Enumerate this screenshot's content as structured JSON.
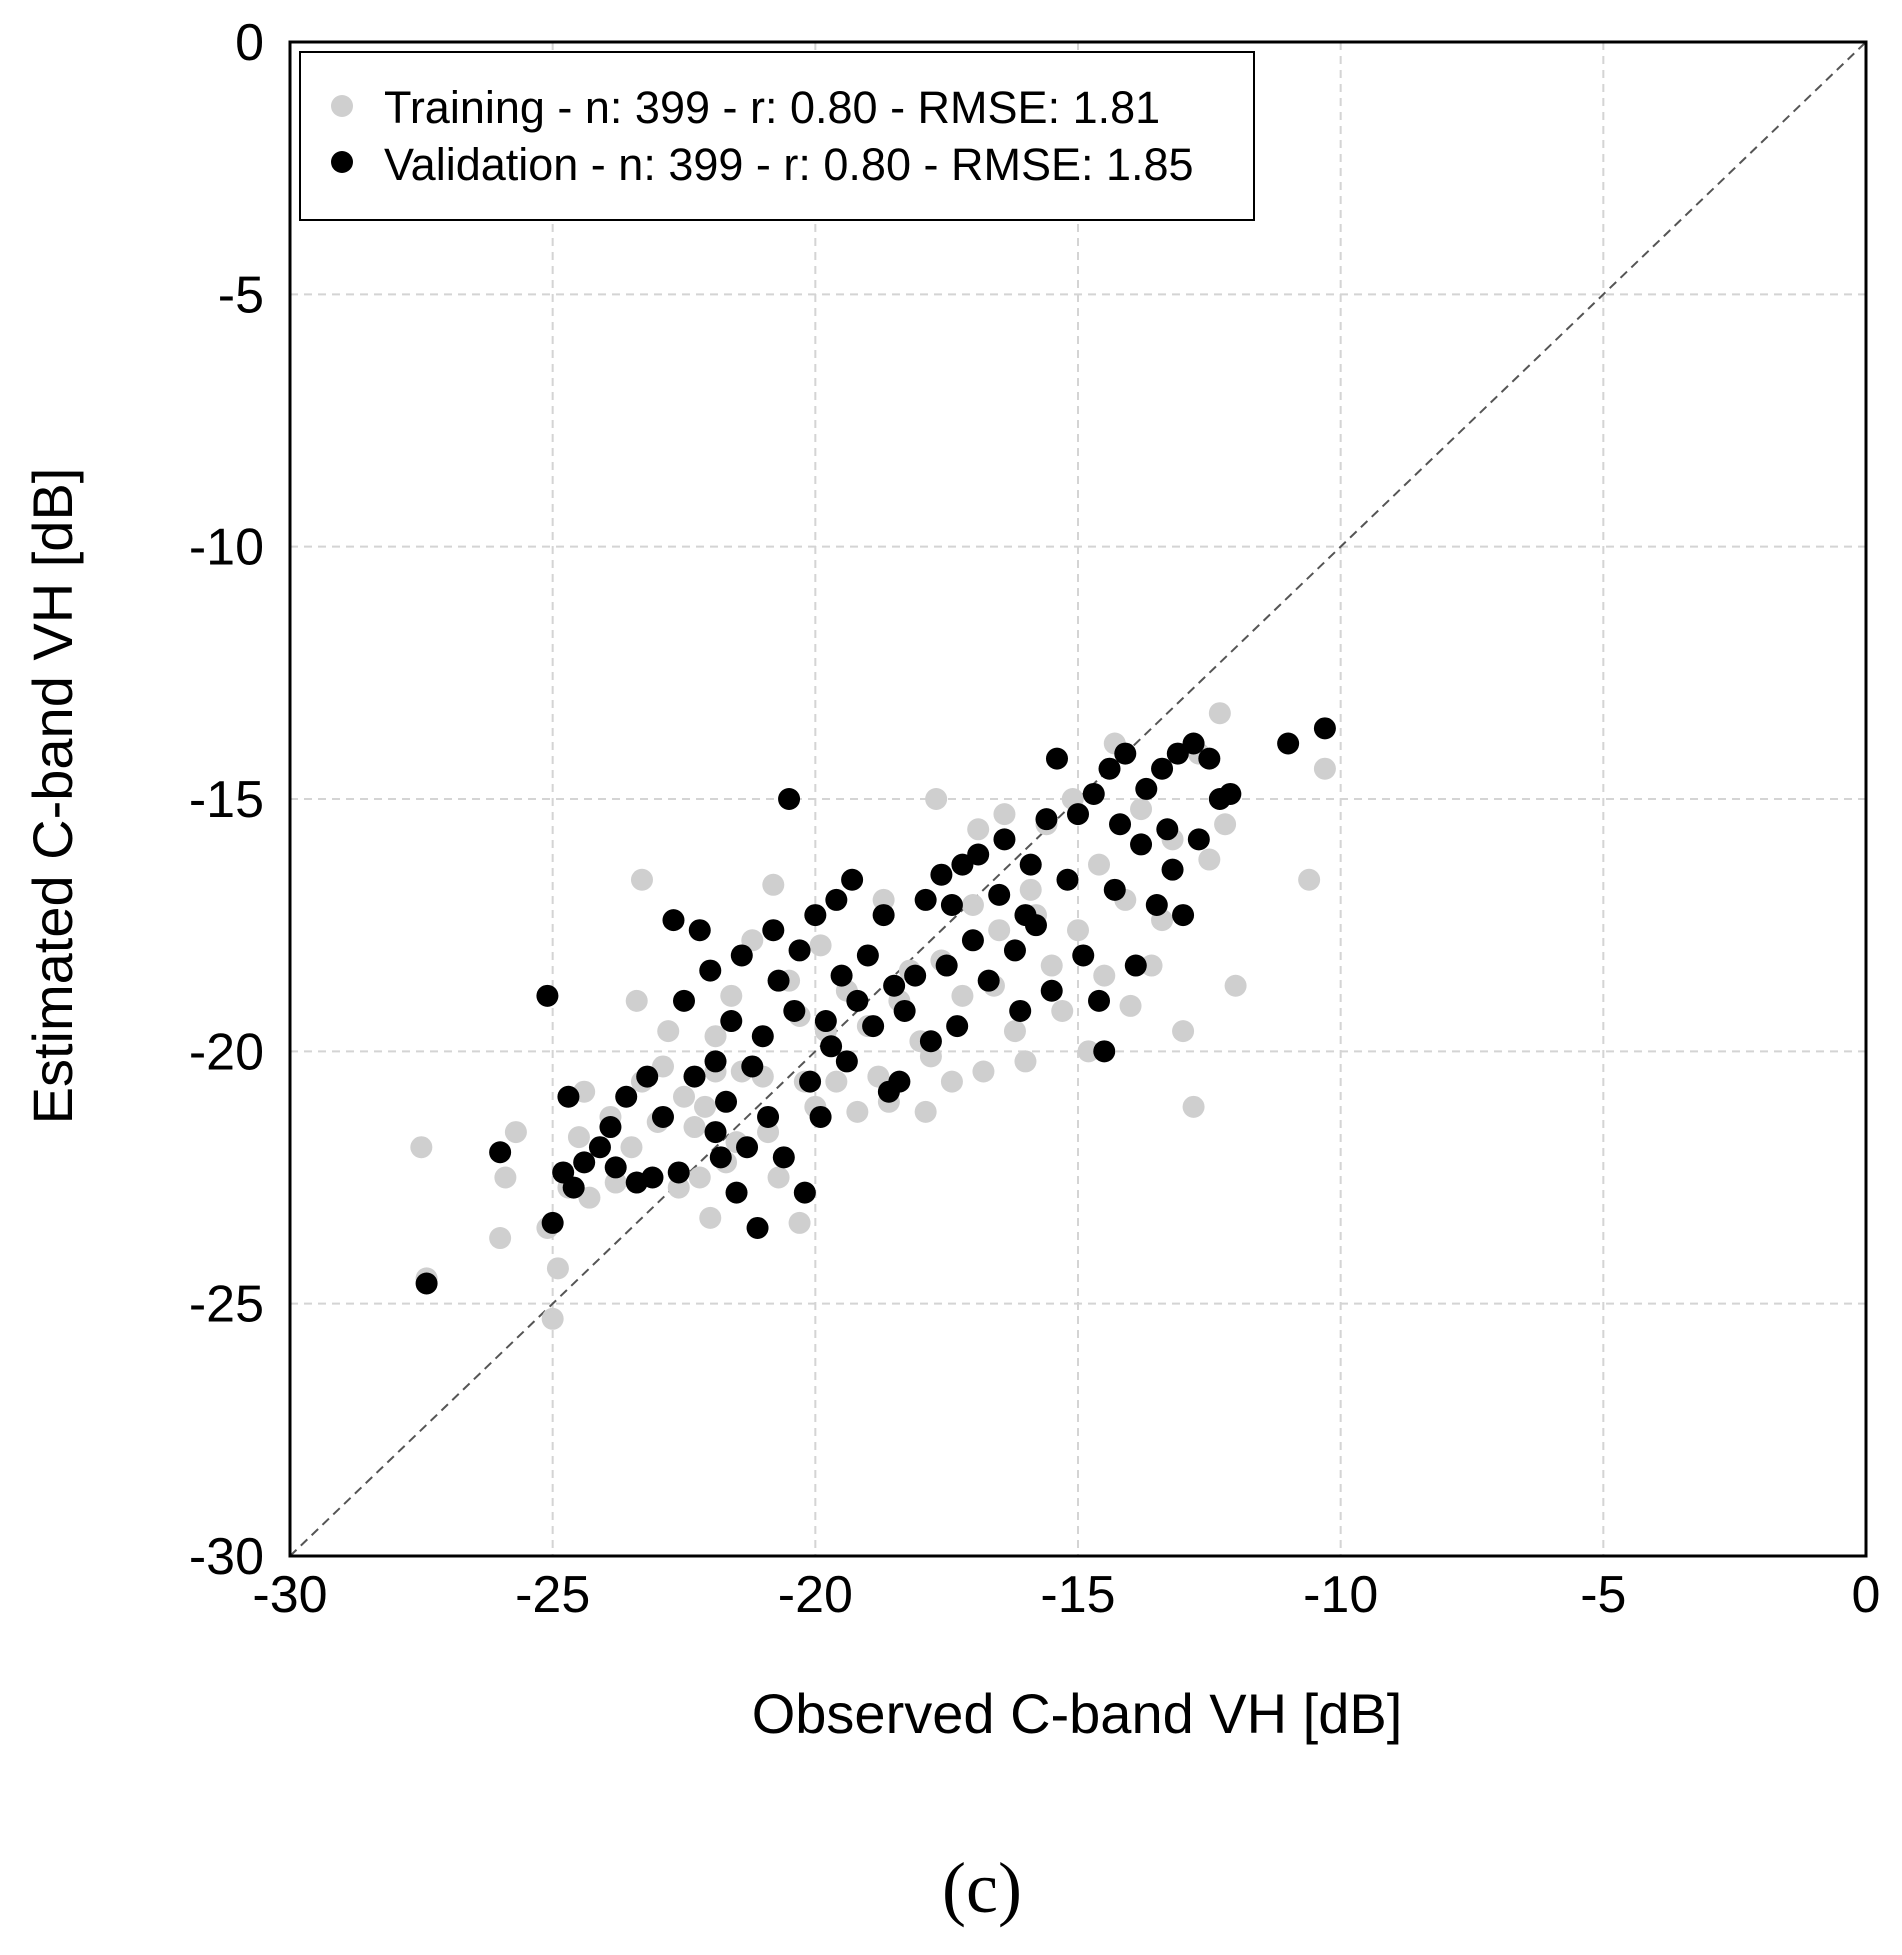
{
  "chart_data": {
    "type": "scatter",
    "xlabel": "Observed C-band VH [dB]",
    "ylabel": "Estimated C-band VH [dB]",
    "xlim": [
      -30,
      0
    ],
    "ylim": [
      -30,
      0
    ],
    "xticks": [
      "-30",
      "-25",
      "-20",
      "-15",
      "-10",
      "-5",
      "0"
    ],
    "yticks": [
      "0",
      "-5",
      "-10",
      "-15",
      "-20",
      "-25",
      "-30"
    ],
    "grid": true,
    "legend_position": "top-left",
    "reference_line": "1:1 dashed",
    "panel_label": "(c)",
    "series": [
      {
        "name": "Training - n: 399 - r: 0.80 - RMSE: 1.81",
        "color": "#cfcfcf",
        "points": [
          [
            -27.5,
            -21.9
          ],
          [
            -27.4,
            -24.5
          ],
          [
            -26.0,
            -23.7
          ],
          [
            -25.9,
            -22.5
          ],
          [
            -25.7,
            -21.6
          ],
          [
            -25.1,
            -23.5
          ],
          [
            -24.9,
            -24.3
          ],
          [
            -25.0,
            -25.3
          ],
          [
            -24.7,
            -22.7
          ],
          [
            -24.5,
            -21.7
          ],
          [
            -24.3,
            -22.9
          ],
          [
            -23.9,
            -21.3
          ],
          [
            -23.8,
            -22.6
          ],
          [
            -23.5,
            -21.9
          ],
          [
            -23.3,
            -20.6
          ],
          [
            -23.3,
            -16.6
          ],
          [
            -23.4,
            -19.0
          ],
          [
            -22.9,
            -20.3
          ],
          [
            -22.8,
            -19.6
          ],
          [
            -22.6,
            -22.7
          ],
          [
            -22.5,
            -20.9
          ],
          [
            -22.3,
            -21.5
          ],
          [
            -22.1,
            -21.1
          ],
          [
            -21.9,
            -20.4
          ],
          [
            -22.0,
            -23.3
          ],
          [
            -21.7,
            -22.2
          ],
          [
            -21.6,
            -18.9
          ],
          [
            -21.5,
            -21.8
          ],
          [
            -21.4,
            -20.4
          ],
          [
            -21.2,
            -17.8
          ],
          [
            -21.0,
            -20.5
          ],
          [
            -20.9,
            -21.6
          ],
          [
            -20.8,
            -16.7
          ],
          [
            -20.7,
            -22.5
          ],
          [
            -20.5,
            -18.6
          ],
          [
            -20.3,
            -23.4
          ],
          [
            -20.2,
            -20.6
          ],
          [
            -20.0,
            -21.1
          ],
          [
            -19.8,
            -19.6
          ],
          [
            -19.6,
            -20.6
          ],
          [
            -19.4,
            -18.8
          ],
          [
            -19.2,
            -21.2
          ],
          [
            -19.0,
            -19.5
          ],
          [
            -18.8,
            -20.5
          ],
          [
            -18.6,
            -21.0
          ],
          [
            -18.4,
            -19.0
          ],
          [
            -18.2,
            -18.4
          ],
          [
            -18.0,
            -19.8
          ],
          [
            -17.8,
            -20.1
          ],
          [
            -17.6,
            -18.2
          ],
          [
            -17.4,
            -20.6
          ],
          [
            -17.2,
            -18.9
          ],
          [
            -17.0,
            -17.1
          ],
          [
            -16.8,
            -20.4
          ],
          [
            -16.6,
            -18.7
          ],
          [
            -16.4,
            -15.3
          ],
          [
            -16.2,
            -19.6
          ],
          [
            -16.0,
            -20.2
          ],
          [
            -15.8,
            -17.3
          ],
          [
            -15.6,
            -15.5
          ],
          [
            -15.5,
            -18.3
          ],
          [
            -15.3,
            -19.2
          ],
          [
            -15.1,
            -15.0
          ],
          [
            -15.0,
            -17.6
          ],
          [
            -14.8,
            -20.0
          ],
          [
            -14.6,
            -16.3
          ],
          [
            -14.5,
            -18.5
          ],
          [
            -14.3,
            -13.9
          ],
          [
            -14.1,
            -17.0
          ],
          [
            -14.0,
            -19.1
          ],
          [
            -13.8,
            -15.2
          ],
          [
            -13.6,
            -18.3
          ],
          [
            -13.4,
            -17.4
          ],
          [
            -13.2,
            -15.8
          ],
          [
            -13.0,
            -19.6
          ],
          [
            -12.8,
            -21.1
          ],
          [
            -12.7,
            -14.1
          ],
          [
            -12.5,
            -16.2
          ],
          [
            -12.3,
            -13.3
          ],
          [
            -12.2,
            -15.5
          ],
          [
            -12.0,
            -18.7
          ],
          [
            -10.6,
            -16.6
          ],
          [
            -10.3,
            -14.4
          ],
          [
            -17.7,
            -15.0
          ],
          [
            -16.9,
            -15.6
          ],
          [
            -19.9,
            -17.9
          ],
          [
            -21.9,
            -19.7
          ],
          [
            -20.3,
            -19.3
          ],
          [
            -18.7,
            -17.0
          ],
          [
            -16.5,
            -17.6
          ],
          [
            -23.0,
            -21.4
          ],
          [
            -24.4,
            -20.8
          ],
          [
            -22.2,
            -22.5
          ],
          [
            -17.9,
            -21.2
          ],
          [
            -15.9,
            -16.8
          ]
        ]
      },
      {
        "name": "Validation - n: 399 - r: 0.80 - RMSE: 1.85",
        "color": "#000000",
        "points": [
          [
            -27.4,
            -24.6
          ],
          [
            -26.0,
            -22.0
          ],
          [
            -25.1,
            -18.9
          ],
          [
            -25.0,
            -23.4
          ],
          [
            -24.8,
            -22.4
          ],
          [
            -24.7,
            -20.9
          ],
          [
            -24.6,
            -22.7
          ],
          [
            -24.4,
            -22.2
          ],
          [
            -24.1,
            -21.9
          ],
          [
            -23.9,
            -21.5
          ],
          [
            -23.8,
            -22.3
          ],
          [
            -23.6,
            -20.9
          ],
          [
            -23.4,
            -22.6
          ],
          [
            -23.2,
            -20.5
          ],
          [
            -22.9,
            -21.3
          ],
          [
            -22.7,
            -17.4
          ],
          [
            -22.6,
            -22.4
          ],
          [
            -22.5,
            -19.0
          ],
          [
            -22.3,
            -20.5
          ],
          [
            -22.2,
            -17.6
          ],
          [
            -22.0,
            -18.4
          ],
          [
            -21.9,
            -20.2
          ],
          [
            -21.8,
            -22.1
          ],
          [
            -21.7,
            -21.0
          ],
          [
            -21.6,
            -19.4
          ],
          [
            -21.5,
            -22.8
          ],
          [
            -21.4,
            -18.1
          ],
          [
            -21.3,
            -21.9
          ],
          [
            -21.2,
            -20.3
          ],
          [
            -21.1,
            -23.5
          ],
          [
            -21.0,
            -19.7
          ],
          [
            -20.9,
            -21.3
          ],
          [
            -20.8,
            -17.6
          ],
          [
            -20.7,
            -18.6
          ],
          [
            -20.6,
            -22.1
          ],
          [
            -20.5,
            -15.0
          ],
          [
            -20.4,
            -19.2
          ],
          [
            -20.3,
            -18.0
          ],
          [
            -20.1,
            -20.6
          ],
          [
            -20.0,
            -17.3
          ],
          [
            -19.9,
            -21.3
          ],
          [
            -19.8,
            -19.4
          ],
          [
            -19.6,
            -17.0
          ],
          [
            -19.5,
            -18.5
          ],
          [
            -19.4,
            -20.2
          ],
          [
            -19.3,
            -16.6
          ],
          [
            -19.2,
            -19.0
          ],
          [
            -19.0,
            -18.1
          ],
          [
            -18.9,
            -19.5
          ],
          [
            -18.7,
            -17.3
          ],
          [
            -18.6,
            -20.8
          ],
          [
            -18.5,
            -18.7
          ],
          [
            -18.3,
            -19.2
          ],
          [
            -18.1,
            -18.5
          ],
          [
            -17.9,
            -17.0
          ],
          [
            -17.8,
            -19.8
          ],
          [
            -17.6,
            -16.5
          ],
          [
            -17.5,
            -18.3
          ],
          [
            -17.3,
            -19.5
          ],
          [
            -17.2,
            -16.3
          ],
          [
            -17.0,
            -17.8
          ],
          [
            -16.9,
            -16.1
          ],
          [
            -16.7,
            -18.6
          ],
          [
            -16.5,
            -16.9
          ],
          [
            -16.4,
            -15.8
          ],
          [
            -16.2,
            -18.0
          ],
          [
            -16.1,
            -19.2
          ],
          [
            -15.9,
            -16.3
          ],
          [
            -15.8,
            -17.5
          ],
          [
            -15.6,
            -15.4
          ],
          [
            -15.5,
            -18.8
          ],
          [
            -15.4,
            -14.2
          ],
          [
            -15.2,
            -16.6
          ],
          [
            -15.0,
            -15.3
          ],
          [
            -14.9,
            -18.1
          ],
          [
            -14.7,
            -14.9
          ],
          [
            -14.6,
            -19.0
          ],
          [
            -14.5,
            -20.0
          ],
          [
            -14.4,
            -14.4
          ],
          [
            -14.3,
            -16.8
          ],
          [
            -14.2,
            -15.5
          ],
          [
            -14.1,
            -14.1
          ],
          [
            -13.9,
            -18.3
          ],
          [
            -13.8,
            -15.9
          ],
          [
            -13.7,
            -14.8
          ],
          [
            -13.5,
            -17.1
          ],
          [
            -13.4,
            -14.4
          ],
          [
            -13.3,
            -15.6
          ],
          [
            -13.2,
            -16.4
          ],
          [
            -13.1,
            -14.1
          ],
          [
            -13.0,
            -17.3
          ],
          [
            -12.8,
            -13.9
          ],
          [
            -12.7,
            -15.8
          ],
          [
            -12.5,
            -14.2
          ],
          [
            -12.3,
            -15.0
          ],
          [
            -12.1,
            -14.9
          ],
          [
            -11.0,
            -13.9
          ],
          [
            -10.3,
            -13.6
          ],
          [
            -18.4,
            -20.6
          ],
          [
            -20.2,
            -22.8
          ],
          [
            -19.7,
            -19.9
          ],
          [
            -17.4,
            -17.1
          ],
          [
            -16.0,
            -17.3
          ],
          [
            -21.9,
            -21.6
          ],
          [
            -23.1,
            -22.5
          ]
        ]
      }
    ]
  }
}
